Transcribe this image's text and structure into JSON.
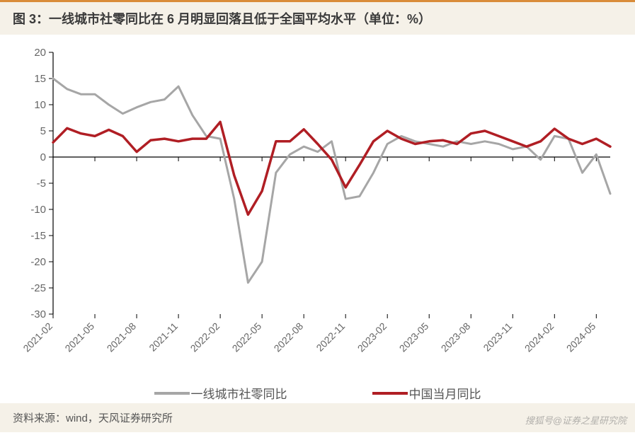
{
  "title": "图 3：一线城市社零同比在 6 月明显回落且低于全国平均水平（单位：%）",
  "source": "资料来源：wind，天风证券研究所",
  "watermark": "搜狐号@证券之星研究院",
  "chart": {
    "type": "line",
    "background_color": "#ffffff",
    "plot_border_color": "#000000",
    "axis_color": "#000000",
    "grid": false,
    "ylim": [
      -30,
      20
    ],
    "ytick_step": 5,
    "yticks": [
      -30,
      -25,
      -20,
      -15,
      -10,
      -5,
      0,
      5,
      10,
      15,
      20
    ],
    "y_fontsize": 15,
    "x_labels_shown": [
      "2021-02",
      "2021-05",
      "2021-08",
      "2021-11",
      "2022-02",
      "2022-05",
      "2022-08",
      "2022-11",
      "2023-02",
      "2023-05",
      "2023-08",
      "2023-11",
      "2024-02",
      "2024-05"
    ],
    "x_all": [
      "2021-02",
      "2021-03",
      "2021-04",
      "2021-05",
      "2021-06",
      "2021-07",
      "2021-08",
      "2021-09",
      "2021-10",
      "2021-11",
      "2021-12",
      "2022-01",
      "2022-02",
      "2022-03",
      "2022-04",
      "2022-05",
      "2022-06",
      "2022-07",
      "2022-08",
      "2022-09",
      "2022-10",
      "2022-11",
      "2022-12",
      "2023-01",
      "2023-02",
      "2023-03",
      "2023-04",
      "2023-05",
      "2023-06",
      "2023-07",
      "2023-08",
      "2023-09",
      "2023-10",
      "2023-11",
      "2023-12",
      "2024-01",
      "2024-02",
      "2024-03",
      "2024-04",
      "2024-05",
      "2024-06"
    ],
    "x_label_rotation": -45,
    "x_fontsize": 14,
    "series": [
      {
        "name": "一线城市社零同比",
        "color": "#a6a6a6",
        "line_width": 3,
        "values": [
          15.0,
          13.0,
          12.0,
          12.0,
          10.0,
          8.3,
          9.5,
          10.5,
          11.0,
          13.5,
          8.0,
          4.0,
          3.5,
          -8.0,
          -24.0,
          -20.0,
          -3.0,
          0.5,
          2.0,
          1.0,
          3.0,
          -8.0,
          -7.5,
          -3.0,
          2.5,
          4.0,
          3.0,
          2.5,
          2.0,
          3.0,
          2.5,
          3.0,
          2.5,
          1.5,
          2.0,
          -0.5,
          4.0,
          3.5,
          -3.0,
          0.5,
          -7.0
        ]
      },
      {
        "name": "中国当月同比",
        "color": "#b01e24",
        "line_width": 3.5,
        "values": [
          2.8,
          5.5,
          4.5,
          4.0,
          5.2,
          4.0,
          1.0,
          3.2,
          3.5,
          3.0,
          3.5,
          3.5,
          6.7,
          -3.5,
          -11.0,
          -6.5,
          3.0,
          3.0,
          5.3,
          2.5,
          -0.5,
          -5.8,
          -1.5,
          3.0,
          5.0,
          3.5,
          2.5,
          3.0,
          3.2,
          2.5,
          4.5,
          5.0,
          4.0,
          3.0,
          2.0,
          3.0,
          5.4,
          3.5,
          2.5,
          3.5,
          2.0
        ]
      }
    ],
    "legend": {
      "position": "bottom",
      "fontsize": 17,
      "items": [
        {
          "label": "一线城市社零同比",
          "color": "#a6a6a6"
        },
        {
          "label": "中国当月同比",
          "color": "#b01e24"
        }
      ]
    }
  },
  "colors": {
    "title_bg": "#f5f1e8",
    "title_border": "#d98c3a",
    "title_text": "#3a3a3a",
    "source_text": "#555555"
  }
}
